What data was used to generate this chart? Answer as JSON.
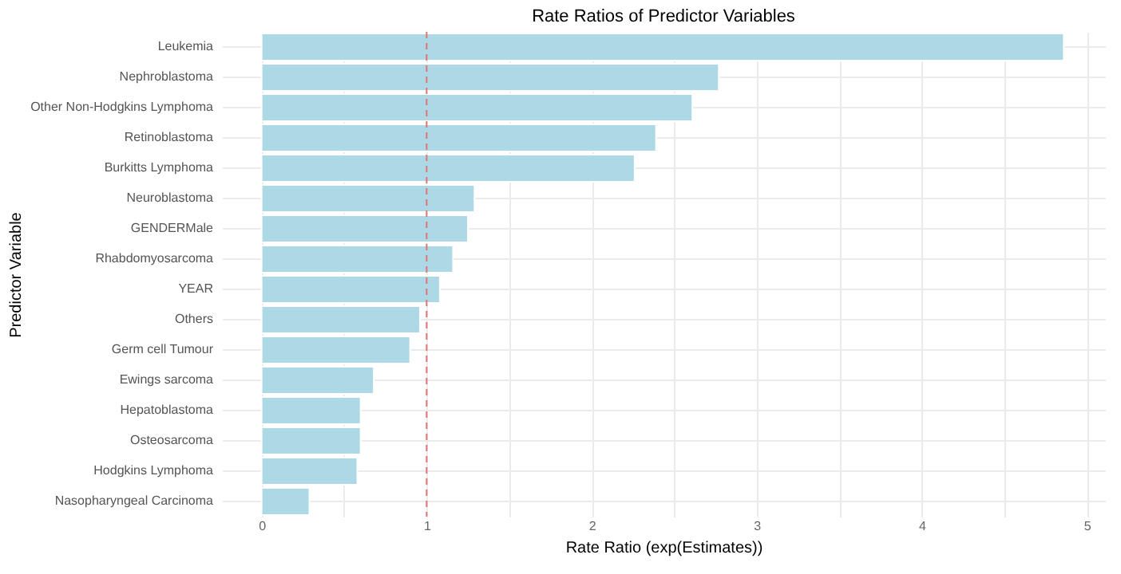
{
  "chart_data": {
    "type": "bar",
    "orientation": "horizontal",
    "title": "Rate Ratios of Predictor Variables",
    "xlabel": "Rate Ratio (exp(Estimates))",
    "ylabel": "Predictor Variable",
    "categories": [
      "Leukemia",
      "Nephroblastoma",
      "Other Non-Hodgkins Lymphoma",
      "Retinoblastoma",
      "Burkitts Lymphoma",
      "Neuroblastoma",
      "GENDERMale",
      "Rhabdomyosarcoma",
      "YEAR",
      "Others",
      "Germ cell Tumour",
      "Ewings sarcoma",
      "Hepatoblastoma",
      "Osteosarcoma",
      "Hodgkins Lymphoma",
      "Nasopharyngeal Carcinoma"
    ],
    "values": [
      4.86,
      2.77,
      2.61,
      2.39,
      2.26,
      1.29,
      1.25,
      1.16,
      1.08,
      0.96,
      0.9,
      0.68,
      0.6,
      0.6,
      0.58,
      0.29
    ],
    "color": "#add8e6",
    "xlim": [
      -0.24,
      5.11
    ],
    "xticks": [
      0,
      {
        "value": 0.5,
        "label": null
      },
      1,
      {
        "value": 1.5,
        "label": null
      },
      2,
      {
        "value": 2.5,
        "label": null
      },
      3,
      {
        "value": 3.5,
        "label": null
      },
      4,
      {
        "value": 4.5,
        "label": null
      },
      5
    ],
    "grid": true,
    "ref_lines": [
      {
        "axis": "x",
        "value": 1,
        "color": "#e57373",
        "line_style": "dashed"
      }
    ]
  }
}
